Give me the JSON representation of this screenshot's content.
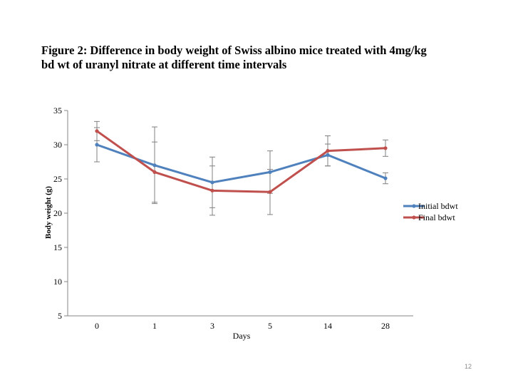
{
  "slide": {
    "title_line1": "Figure 2: Difference in body weight of Swiss albino mice treated with 4mg/kg",
    "title_line2": "bd wt of uranyl nitrate at different time intervals",
    "page_number": "12"
  },
  "chart_data": {
    "type": "line",
    "title": "Figure 2: Difference in body weight of Swiss albino mice treated with 4mg/kg bd wt of uranyl nitrate at different time intervals",
    "xlabel": "Days",
    "ylabel": "Body weight (g)",
    "categories": [
      "0",
      "1",
      "3",
      "5",
      "14",
      "28"
    ],
    "ylim": [
      5,
      35
    ],
    "yticks": [
      5,
      10,
      15,
      20,
      25,
      30,
      35
    ],
    "legend_position": "right",
    "grid": false,
    "series": [
      {
        "name": "Initial bdwt",
        "color": "#4f81bd",
        "values": [
          30.0,
          27.0,
          24.5,
          26.0,
          28.5,
          25.1
        ],
        "errors": [
          2.5,
          5.6,
          3.7,
          3.1,
          1.6,
          0.8
        ]
      },
      {
        "name": "Final bdwt",
        "color": "#c0504d",
        "values": [
          32.0,
          26.0,
          23.3,
          23.1,
          29.1,
          29.5
        ],
        "errors": [
          1.4,
          4.4,
          3.6,
          3.3,
          2.2,
          1.2
        ]
      }
    ]
  }
}
